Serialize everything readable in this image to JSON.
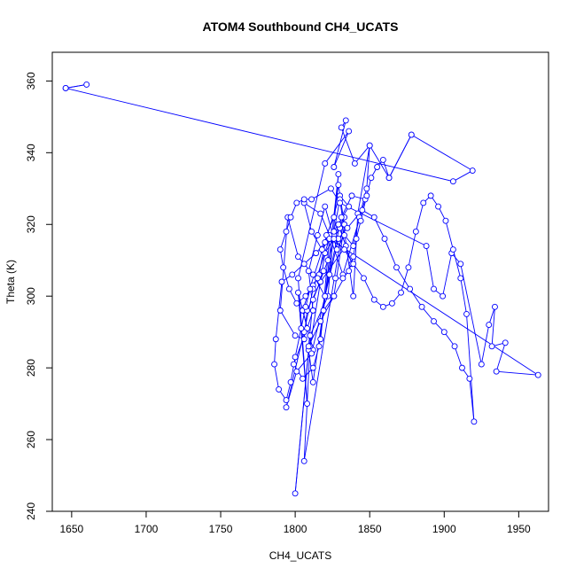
{
  "chart_data": {
    "type": "line",
    "title": "ATOM4 Southbound CH4_UCATS",
    "xlabel": "CH4_UCATS",
    "ylabel": "Theta (K)",
    "xlim": [
      1637,
      1970
    ],
    "ylim": [
      240,
      368
    ],
    "x_ticks": [
      1650,
      1700,
      1750,
      1800,
      1850,
      1900,
      1950
    ],
    "y_ticks": [
      240,
      260,
      280,
      300,
      320,
      340,
      360
    ],
    "grid": false,
    "legend": "none",
    "series_color": "#0000FF",
    "marker": "open-circle",
    "series": [
      {
        "points": [
          [
            1646,
            358
          ],
          [
            1660,
            359
          ],
          [
            1646,
            358
          ],
          [
            1906,
            332
          ],
          [
            1919,
            335
          ],
          [
            1878,
            345
          ],
          [
            1863,
            333
          ],
          [
            1850,
            342
          ],
          [
            1840,
            337
          ],
          [
            1831,
            347
          ],
          [
            1834,
            349
          ],
          [
            1826,
            336
          ],
          [
            1836,
            346
          ],
          [
            1820,
            337
          ],
          [
            1802,
            305
          ],
          [
            1808,
            270
          ],
          [
            1802,
            301
          ],
          [
            1812,
            285
          ],
          [
            1805,
            296
          ],
          [
            1830,
            328
          ],
          [
            1836,
            325
          ],
          [
            1823,
            316
          ],
          [
            1817,
            288
          ],
          [
            1829,
            334
          ],
          [
            1822,
            300
          ],
          [
            1810,
            289
          ],
          [
            1800,
            245
          ],
          [
            1809,
            285
          ],
          [
            1812,
            276
          ],
          [
            1826,
            317
          ],
          [
            1833,
            322
          ],
          [
            1806,
            254
          ],
          [
            1810,
            286
          ],
          [
            1820,
            312
          ],
          [
            1830,
            319
          ],
          [
            1838,
            309
          ],
          [
            1826,
            300
          ],
          [
            1817,
            293
          ],
          [
            1809,
            286
          ],
          [
            1812,
            299
          ],
          [
            1822,
            310
          ],
          [
            1829,
            320
          ],
          [
            1834,
            314
          ],
          [
            1817,
            304
          ],
          [
            1808,
            296
          ],
          [
            1806,
            288
          ],
          [
            1800,
            289
          ],
          [
            1790,
            296
          ],
          [
            1795,
            322
          ],
          [
            1802,
            311
          ],
          [
            1812,
            306
          ],
          [
            1820,
            300
          ],
          [
            1831,
            322
          ],
          [
            1838,
            328
          ],
          [
            1847,
            327
          ],
          [
            1832,
            306
          ],
          [
            1823,
            317
          ],
          [
            1817,
            323
          ],
          [
            1806,
            326
          ],
          [
            1811,
            318
          ],
          [
            1818,
            313
          ],
          [
            1826,
            318
          ],
          [
            1830,
            327
          ],
          [
            1839,
            300
          ],
          [
            1842,
            323
          ],
          [
            1850,
            342
          ],
          [
            1848,
            330
          ],
          [
            1843,
            322
          ],
          [
            1839,
            314
          ],
          [
            1833,
            317
          ],
          [
            1828,
            313
          ],
          [
            1820,
            325
          ],
          [
            1815,
            317
          ],
          [
            1809,
            307
          ],
          [
            1812,
            296
          ],
          [
            1808,
            291
          ],
          [
            1799,
            281
          ],
          [
            1805,
            277
          ],
          [
            1812,
            280
          ],
          [
            1816,
            286
          ],
          [
            1819,
            296
          ],
          [
            1826,
            300
          ],
          [
            1833,
            320
          ],
          [
            1829,
            331
          ],
          [
            1826,
            322
          ],
          [
            1821,
            317
          ],
          [
            1816,
            306
          ],
          [
            1812,
            303
          ],
          [
            1807,
            300
          ],
          [
            1801,
            298
          ],
          [
            1796,
            302
          ],
          [
            1792,
            308
          ],
          [
            1790,
            313
          ],
          [
            1794,
            318
          ],
          [
            1797,
            322
          ],
          [
            1801,
            326
          ],
          [
            1806,
            327
          ],
          [
            1811,
            327
          ],
          [
            1824,
            330
          ],
          [
            1830,
            326
          ],
          [
            1888,
            314
          ],
          [
            1893,
            302
          ],
          [
            1899,
            300
          ],
          [
            1905,
            312
          ],
          [
            1911,
            309
          ],
          [
            1925,
            281
          ],
          [
            1930,
            292
          ],
          [
            1934,
            297
          ],
          [
            1932,
            286
          ],
          [
            1941,
            287
          ],
          [
            1935,
            279
          ],
          [
            1963,
            278
          ],
          [
            1823,
            316
          ],
          [
            1812,
            302
          ],
          [
            1806,
            290
          ],
          [
            1794,
            269
          ],
          [
            1801,
            279
          ],
          [
            1811,
            284
          ],
          [
            1820,
            300
          ],
          [
            1829,
            316
          ],
          [
            1835,
            319
          ],
          [
            1845,
            324
          ],
          [
            1853,
            322
          ],
          [
            1860,
            316
          ],
          [
            1868,
            308
          ],
          [
            1877,
            302
          ],
          [
            1885,
            297
          ],
          [
            1893,
            293
          ],
          [
            1900,
            290
          ],
          [
            1907,
            286
          ],
          [
            1912,
            280
          ],
          [
            1917,
            277
          ],
          [
            1920,
            265
          ],
          [
            1915,
            295
          ],
          [
            1911,
            305
          ],
          [
            1906,
            313
          ],
          [
            1901,
            321
          ],
          [
            1896,
            325
          ],
          [
            1891,
            328
          ],
          [
            1886,
            326
          ],
          [
            1881,
            318
          ],
          [
            1876,
            308
          ],
          [
            1871,
            301
          ],
          [
            1865,
            298
          ],
          [
            1859,
            297
          ],
          [
            1853,
            299
          ],
          [
            1846,
            305
          ],
          [
            1839,
            309
          ],
          [
            1833,
            313
          ],
          [
            1826,
            316
          ],
          [
            1820,
            315
          ],
          [
            1814,
            312
          ],
          [
            1806,
            309
          ],
          [
            1798,
            306
          ],
          [
            1791,
            304
          ],
          [
            1787,
            288
          ],
          [
            1786,
            281
          ],
          [
            1789,
            274
          ],
          [
            1794,
            271
          ],
          [
            1797,
            276
          ],
          [
            1800,
            283
          ],
          [
            1804,
            291
          ],
          [
            1807,
            297
          ],
          [
            1810,
            302
          ],
          [
            1815,
            305
          ],
          [
            1819,
            307
          ],
          [
            1823,
            306
          ],
          [
            1827,
            305
          ],
          [
            1832,
            305
          ],
          [
            1836,
            307
          ],
          [
            1839,
            311
          ],
          [
            1841,
            316
          ],
          [
            1844,
            321
          ],
          [
            1848,
            328
          ],
          [
            1851,
            333
          ],
          [
            1855,
            336
          ],
          [
            1859,
            338
          ],
          [
            1863,
            333
          ],
          [
            1878,
            345
          ]
        ]
      }
    ]
  }
}
